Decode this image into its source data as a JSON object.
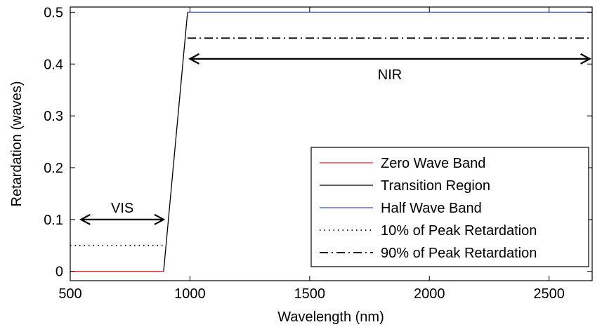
{
  "chart_data": {
    "type": "line",
    "xlabel": "Wavelength (nm)",
    "ylabel": "Retardation (waves)",
    "xlim": [
      500,
      2680
    ],
    "ylim": [
      -0.018,
      0.51
    ],
    "xticks": [
      500,
      1000,
      1500,
      2000,
      2500
    ],
    "yticks": [
      0,
      0.1,
      0.2,
      0.3,
      0.4,
      0.5
    ],
    "ytick_labels": [
      "0",
      "0.1",
      "0.2",
      "0.3",
      "0.4",
      "0.5"
    ],
    "grid": false,
    "legend_position": "bottom-right",
    "series": [
      {
        "name": "Zero Wave Band",
        "color": "#e8202a",
        "style": "solid",
        "x": [
          500,
          890
        ],
        "y": [
          0,
          0
        ]
      },
      {
        "name": "Transition Region",
        "color": "#000000",
        "style": "solid",
        "x": [
          890,
          990
        ],
        "y": [
          0,
          0.5
        ]
      },
      {
        "name": "Half Wave Band",
        "color": "#3a55a4",
        "style": "solid",
        "x": [
          990,
          2680
        ],
        "y": [
          0.5,
          0.5
        ]
      },
      {
        "name": "10% of Peak Retardation",
        "color": "#000000",
        "style": "dotted",
        "x": [
          500,
          890
        ],
        "y": [
          0.05,
          0.05
        ]
      },
      {
        "name": "90% of Peak Retardation",
        "color": "#000000",
        "style": "dashdot",
        "x": [
          990,
          2680
        ],
        "y": [
          0.45,
          0.45
        ]
      }
    ],
    "annotations": [
      {
        "text": "VIS",
        "arrow_x": [
          545,
          890
        ],
        "arrow_y": 0.1
      },
      {
        "text": "NIR",
        "arrow_x": [
          1000,
          2670
        ],
        "arrow_y": 0.41
      }
    ]
  }
}
